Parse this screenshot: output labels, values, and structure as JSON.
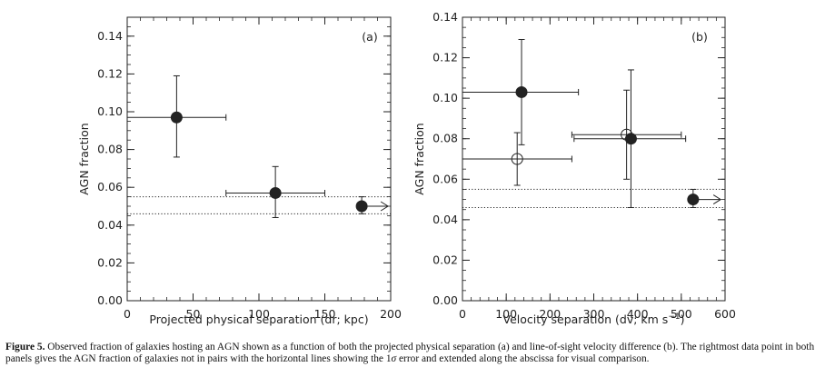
{
  "chart_data": [
    {
      "type": "scatter",
      "panel_label": "(a)",
      "xlabel": "Projected physical separation (dr; kpc)",
      "ylabel": "AGN fraction",
      "xlim": [
        0,
        200
      ],
      "ylim": [
        0.0,
        0.15
      ],
      "xticks": [
        0,
        50,
        100,
        150,
        200
      ],
      "yticks": [
        0.0,
        0.02,
        0.04,
        0.06,
        0.08,
        0.1,
        0.12,
        0.14
      ],
      "ytick_labels": [
        "0.00",
        "0.02",
        "0.04",
        "0.06",
        "0.08",
        "0.10",
        "0.12",
        "0.14"
      ],
      "reference_band": {
        "lower": 0.046,
        "upper": 0.055,
        "style": "dotted"
      },
      "series": [
        {
          "marker": "filled-circle",
          "points": [
            {
              "x": 37.5,
              "y": 0.097,
              "xerr": [
                37.5,
                37.5
              ],
              "yerr": [
                0.021,
                0.022
              ]
            },
            {
              "x": 112.5,
              "y": 0.057,
              "xerr": [
                37.5,
                37.5
              ],
              "yerr": [
                0.013,
                0.014
              ]
            }
          ]
        },
        {
          "marker": "filled-circle-arrow",
          "points": [
            {
              "x": 178,
              "y": 0.05,
              "arrow_to": 198,
              "yerr": [
                0.004,
                0.005
              ]
            }
          ]
        }
      ]
    },
    {
      "type": "scatter",
      "panel_label": "(b)",
      "xlabel": "Velocity separation (dv; km s",
      "xlabel_sup": "−1",
      "xlabel_close": ")",
      "ylabel": "AGN fraction",
      "xlim": [
        0,
        600
      ],
      "ylim": [
        0.0,
        0.14
      ],
      "xticks": [
        0,
        100,
        200,
        300,
        400,
        500,
        600
      ],
      "yticks": [
        0.0,
        0.02,
        0.04,
        0.06,
        0.08,
        0.1,
        0.12,
        0.14
      ],
      "ytick_labels": [
        "0.00",
        "0.02",
        "0.04",
        "0.06",
        "0.08",
        "0.10",
        "0.12",
        "0.14"
      ],
      "reference_band": {
        "lower": 0.046,
        "upper": 0.055,
        "style": "dotted"
      },
      "series": [
        {
          "marker": "filled-circle",
          "points": [
            {
              "x": 135,
              "y": 0.103,
              "xerr": [
                135,
                130
              ],
              "yerr": [
                0.026,
                0.026
              ]
            },
            {
              "x": 385,
              "y": 0.08,
              "xerr": [
                130,
                125
              ],
              "yerr": [
                0.034,
                0.034
              ]
            }
          ]
        },
        {
          "marker": "open-circle",
          "points": [
            {
              "x": 125,
              "y": 0.07,
              "xerr": [
                125,
                125
              ],
              "yerr": [
                0.013,
                0.013
              ]
            },
            {
              "x": 375,
              "y": 0.082,
              "xerr": [
                125,
                125
              ],
              "yerr": [
                0.022,
                0.022
              ]
            }
          ]
        },
        {
          "marker": "filled-circle-arrow",
          "points": [
            {
              "x": 527,
              "y": 0.05,
              "arrow_to": 590,
              "yerr": [
                0.004,
                0.005
              ]
            }
          ]
        }
      ]
    }
  ],
  "caption": {
    "label": "Figure 5.",
    "text_1": " Observed fraction of galaxies hosting an AGN shown as a function of both the projected physical separation (a) and line-of-sight velocity difference (b). The rightmost data point in both panels gives the AGN fraction of galaxies not in pairs with the horizontal lines showing the 1",
    "sigma": "σ",
    "text_2": " error and extended along the abscissa for visual comparison."
  }
}
